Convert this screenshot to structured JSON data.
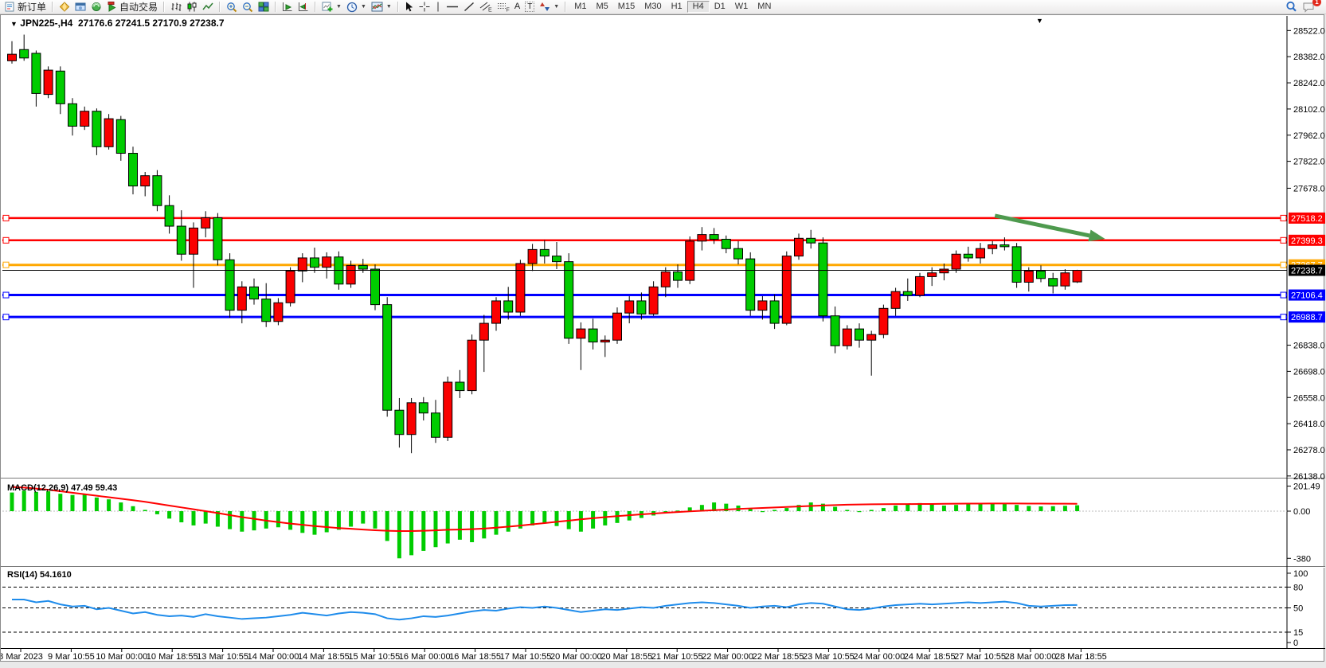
{
  "toolbar": {
    "new_order": "新订单",
    "auto_trading": "自动交易",
    "timeframes": [
      "M1",
      "M5",
      "M15",
      "M30",
      "H1",
      "H4",
      "D1",
      "W1",
      "MN"
    ],
    "active_timeframe": "H4",
    "notification_count": "1",
    "tool_letter_text": "A",
    "tool_letter_label": "T",
    "channel_letter": "E",
    "fibo_letter": "F"
  },
  "chart": {
    "dropdown_glyph": "▼",
    "title_symbol": "JPN225-,H4",
    "title_ohlc": "27176.6 27241.5 27170.9 27238.7",
    "macd_label": "MACD(12,26,9) 47.49 59.43",
    "rsi_label": "RSI(14) 54.1610"
  },
  "chart_data": [
    {
      "type": "candlestick",
      "title": "JPN225-,H4",
      "timeframe": "H4",
      "ohlc_display": "27176.6 27241.5 27170.9 27238.7",
      "ylim": [
        26133,
        28566
      ],
      "y_ticks": [
        28522,
        28382,
        28242,
        28102,
        27962,
        27822,
        27678,
        26838,
        26698,
        26558,
        26418,
        26278,
        26138
      ],
      "x_labels": [
        "8 Mar 2023",
        "9 Mar 10:55",
        "10 Mar 00:00",
        "10 Mar 18:55",
        "13 Mar 10:55",
        "14 Mar 00:00",
        "14 Mar 18:55",
        "15 Mar 10:55",
        "16 Mar 00:00",
        "16 Mar 18:55",
        "17 Mar 10:55",
        "20 Mar 00:00",
        "20 Mar 18:55",
        "21 Mar 10:55",
        "22 Mar 00:00",
        "22 Mar 18:55",
        "23 Mar 10:55",
        "24 Mar 00:00",
        "24 Mar 18:55",
        "27 Mar 10:55",
        "28 Mar 00:00",
        "28 Mar 18:55"
      ],
      "colors": {
        "up": "#fa0000",
        "down": "#00cc00",
        "outline": "#000000"
      },
      "hlines": [
        {
          "price": 27518.2,
          "label": "27518.2",
          "color": "#ff0000",
          "width": 2.5
        },
        {
          "price": 27399.3,
          "label": "27399.3",
          "color": "#ff0000",
          "width": 2.5
        },
        {
          "price": 27267.7,
          "label": "27267.7",
          "color": "#ffa800",
          "width": 3
        },
        {
          "price": 27106.4,
          "label": "27106.4",
          "color": "#0000ff",
          "width": 3
        },
        {
          "price": 26988.7,
          "label": "26988.7",
          "color": "#0000ff",
          "width": 3
        }
      ],
      "current_price": {
        "price": 27238.7,
        "label": "27238.7",
        "color": "#000000"
      },
      "arrow": {
        "from_bar": 81.2,
        "from_price": 27531,
        "to_bar": 90.3,
        "to_price": 27407,
        "color": "#4e9a4e"
      },
      "bars": [
        [
          28360,
          28465,
          28345,
          28395
        ],
        [
          28420,
          28500,
          28360,
          28375
        ],
        [
          28400,
          28415,
          28115,
          28185
        ],
        [
          28180,
          28330,
          28160,
          28310
        ],
        [
          28305,
          28330,
          28075,
          28130
        ],
        [
          28130,
          28160,
          27960,
          28010
        ],
        [
          28010,
          28115,
          27990,
          28090
        ],
        [
          28090,
          28105,
          27855,
          27900
        ],
        [
          27900,
          28075,
          27885,
          28050
        ],
        [
          28045,
          28065,
          27825,
          27865
        ],
        [
          27865,
          27900,
          27645,
          27690
        ],
        [
          27690,
          27765,
          27635,
          27745
        ],
        [
          27745,
          27775,
          27555,
          27585
        ],
        [
          27585,
          27640,
          27435,
          27475
        ],
        [
          27475,
          27560,
          27290,
          27325
        ],
        [
          27325,
          27495,
          27145,
          27465
        ],
        [
          27465,
          27555,
          27415,
          27520
        ],
        [
          27520,
          27545,
          27265,
          27295
        ],
        [
          27295,
          27330,
          26985,
          27025
        ],
        [
          27025,
          27180,
          26955,
          27150
        ],
        [
          27150,
          27195,
          27055,
          27085
        ],
        [
          27085,
          27170,
          26935,
          26965
        ],
        [
          26965,
          27090,
          26945,
          27065
        ],
        [
          27065,
          27255,
          27045,
          27235
        ],
        [
          27235,
          27330,
          27175,
          27305
        ],
        [
          27305,
          27360,
          27225,
          27255
        ],
        [
          27255,
          27335,
          27195,
          27310
        ],
        [
          27310,
          27340,
          27135,
          27165
        ],
        [
          27165,
          27290,
          27145,
          27265
        ],
        [
          27265,
          27300,
          27225,
          27245
        ],
        [
          27245,
          27270,
          27025,
          27055
        ],
        [
          27055,
          27095,
          26455,
          26490
        ],
        [
          26490,
          26555,
          26290,
          26360
        ],
        [
          26360,
          26555,
          26260,
          26530
        ],
        [
          26530,
          26560,
          26435,
          26475
        ],
        [
          26475,
          26545,
          26315,
          26345
        ],
        [
          26345,
          26670,
          26325,
          26640
        ],
        [
          26640,
          26705,
          26555,
          26595
        ],
        [
          26595,
          26895,
          26575,
          26865
        ],
        [
          26865,
          27000,
          26695,
          26955
        ],
        [
          26955,
          27095,
          26915,
          27075
        ],
        [
          27075,
          27150,
          26975,
          27015
        ],
        [
          27015,
          27295,
          26995,
          27275
        ],
        [
          27275,
          27380,
          27235,
          27350
        ],
        [
          27350,
          27400,
          27275,
          27315
        ],
        [
          27315,
          27390,
          27245,
          27285
        ],
        [
          27285,
          27330,
          26845,
          26875
        ],
        [
          26875,
          26960,
          26705,
          26925
        ],
        [
          26925,
          26980,
          26815,
          26855
        ],
        [
          26855,
          26890,
          26775,
          26865
        ],
        [
          26865,
          27040,
          26845,
          27010
        ],
        [
          27010,
          27100,
          26955,
          27075
        ],
        [
          27075,
          27120,
          26975,
          27005
        ],
        [
          27005,
          27180,
          26995,
          27150
        ],
        [
          27150,
          27255,
          27095,
          27230
        ],
        [
          27230,
          27270,
          27145,
          27185
        ],
        [
          27185,
          27420,
          27165,
          27395
        ],
        [
          27395,
          27470,
          27345,
          27430
        ],
        [
          27430,
          27465,
          27380,
          27405
        ],
        [
          27405,
          27425,
          27330,
          27355
        ],
        [
          27355,
          27395,
          27270,
          27300
        ],
        [
          27300,
          27335,
          26995,
          27025
        ],
        [
          27025,
          27100,
          26975,
          27075
        ],
        [
          27075,
          27110,
          26925,
          26955
        ],
        [
          26955,
          27340,
          26945,
          27315
        ],
        [
          27315,
          27435,
          27295,
          27410
        ],
        [
          27410,
          27455,
          27355,
          27385
        ],
        [
          27385,
          27415,
          26965,
          26995
        ],
        [
          26995,
          27045,
          26795,
          26835
        ],
        [
          26835,
          26945,
          26815,
          26925
        ],
        [
          26925,
          26955,
          26825,
          26865
        ],
        [
          26865,
          26915,
          26675,
          26895
        ],
        [
          26895,
          27055,
          26875,
          27035
        ],
        [
          27035,
          27145,
          26995,
          27125
        ],
        [
          27125,
          27195,
          27075,
          27105
        ],
        [
          27105,
          27225,
          27095,
          27205
        ],
        [
          27205,
          27255,
          27155,
          27225
        ],
        [
          27225,
          27275,
          27185,
          27245
        ],
        [
          27245,
          27345,
          27225,
          27325
        ],
        [
          27325,
          27365,
          27285,
          27305
        ],
        [
          27305,
          27385,
          27275,
          27355
        ],
        [
          27355,
          27395,
          27325,
          27375
        ],
        [
          27375,
          27415,
          27345,
          27365
        ],
        [
          27365,
          27385,
          27145,
          27175
        ],
        [
          27175,
          27255,
          27125,
          27235
        ],
        [
          27235,
          27265,
          27175,
          27195
        ],
        [
          27195,
          27225,
          27115,
          27155
        ],
        [
          27155,
          27245,
          27135,
          27225
        ],
        [
          27176.6,
          27241.5,
          27170.9,
          27238.7
        ]
      ]
    },
    {
      "type": "bar",
      "name": "MACD",
      "label": "MACD(12,26,9) 47.49 59.43",
      "params": "12,26,9",
      "macd_value": 47.49,
      "signal_value": 59.43,
      "ylim": [
        -436,
        250
      ],
      "y_ticks": [
        {
          "v": 201.49,
          "t": "201.49"
        },
        {
          "v": 0,
          "t": "0.00"
        },
        {
          "v": -380,
          "t": "-380"
        }
      ],
      "colors": {
        "histogram": "#00cc00",
        "signal": "#ff0000"
      },
      "values": [
        150,
        165,
        155,
        160,
        140,
        130,
        135,
        110,
        95,
        70,
        40,
        10,
        -25,
        -60,
        -90,
        -115,
        -100,
        -125,
        -145,
        -165,
        -155,
        -140,
        -130,
        -150,
        -175,
        -190,
        -170,
        -150,
        -125,
        -100,
        -140,
        -240,
        -380,
        -355,
        -320,
        -290,
        -260,
        -230,
        -250,
        -220,
        -190,
        -165,
        -140,
        -115,
        -95,
        -120,
        -145,
        -165,
        -140,
        -115,
        -95,
        -75,
        -55,
        -35,
        -15,
        5,
        30,
        50,
        70,
        60,
        45,
        20,
        -5,
        10,
        25,
        50,
        70,
        60,
        35,
        10,
        -5,
        10,
        25,
        45,
        55,
        65,
        55,
        45,
        50,
        55,
        60,
        65,
        60,
        50,
        42,
        38,
        40,
        43,
        47.49
      ],
      "signal": [
        195,
        190,
        182,
        172,
        160,
        148,
        136,
        124,
        112,
        100,
        88,
        75,
        60,
        45,
        30,
        15,
        0,
        -15,
        -32,
        -48,
        -62,
        -76,
        -88,
        -100,
        -110,
        -120,
        -128,
        -136,
        -142,
        -148,
        -154,
        -158,
        -160,
        -160,
        -158,
        -155,
        -150,
        -148,
        -145,
        -140,
        -133,
        -125,
        -116,
        -106,
        -96,
        -86,
        -76,
        -66,
        -57,
        -48,
        -40,
        -33,
        -26,
        -19,
        -13,
        -7,
        -2,
        3,
        8,
        13,
        18,
        22,
        26,
        30,
        34,
        38,
        42,
        46,
        49,
        52,
        54,
        55,
        56,
        57,
        57,
        58,
        58,
        59,
        60,
        61,
        61,
        62,
        62,
        62,
        61,
        61,
        60,
        60,
        59.43
      ]
    },
    {
      "type": "line",
      "name": "RSI",
      "label": "RSI(14) 54.1610",
      "period": 14,
      "value": 54.161,
      "ylim": [
        -8,
        108
      ],
      "levels": [
        80,
        50,
        15
      ],
      "y_ticks": [
        100,
        80,
        50,
        15,
        0
      ],
      "color": "#1f8ceb",
      "values": [
        62,
        62,
        58,
        60,
        55,
        52,
        53,
        48,
        50,
        46,
        42,
        44,
        40,
        38,
        39,
        37,
        41,
        38,
        36,
        34,
        35,
        36,
        38,
        40,
        43,
        41,
        39,
        42,
        44,
        43,
        41,
        35,
        33,
        35,
        38,
        37,
        39,
        42,
        45,
        47,
        46,
        49,
        51,
        50,
        52,
        50,
        47,
        44,
        46,
        48,
        47,
        49,
        51,
        50,
        53,
        55,
        57,
        58,
        57,
        55,
        53,
        50,
        52,
        53,
        51,
        55,
        57,
        56,
        52,
        48,
        47,
        49,
        52,
        54,
        55,
        56,
        55,
        56,
        57,
        58,
        57,
        58,
        59,
        57,
        53,
        52,
        53,
        54,
        54.16
      ]
    }
  ]
}
